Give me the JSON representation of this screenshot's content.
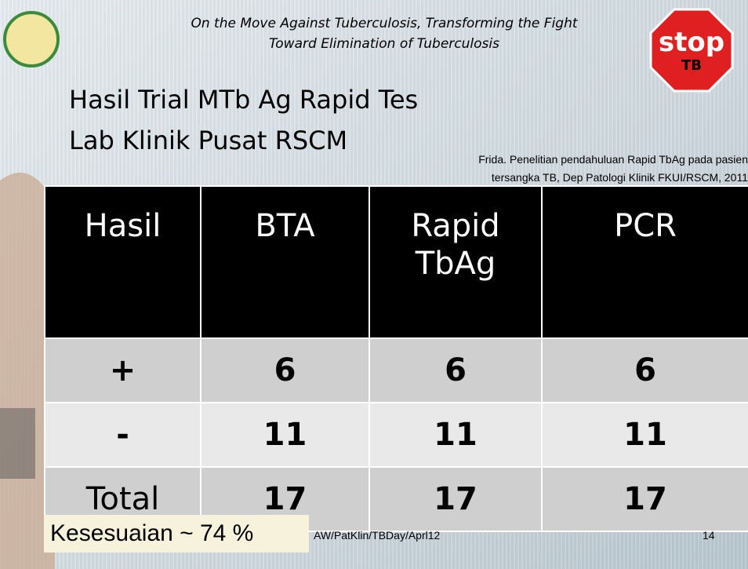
{
  "header": {
    "subtitle": [
      "On the Move Against Tuberculosis, Transforming the Fight",
      "Toward Elimination of Tuberculosis"
    ],
    "logo": {
      "top": "stop",
      "bottom": "TB"
    }
  },
  "title": [
    "Hasil Trial MTb Ag Rapid Tes",
    "Lab Klinik Pusat RSCM"
  ],
  "citation": [
    "Frida. Penelitian pendahuluan Rapid TbAg pada pasien",
    "tersangka TB, Dep Patologi Klinik FKUI/RSCM, 2011"
  ],
  "table": {
    "header": [
      "Hasil",
      "BTA",
      "Rapid TbAg",
      "PCR"
    ],
    "rows": [
      [
        "+",
        "6",
        "6",
        "6"
      ],
      [
        "-",
        "11",
        "11",
        "11"
      ],
      [
        "Total",
        "17",
        "17",
        "17"
      ]
    ]
  },
  "footer": {
    "note": "Kesesuaian ~ 74 %",
    "source": "AW/PatKlin/TBDay/Aprl12",
    "page": "14"
  }
}
